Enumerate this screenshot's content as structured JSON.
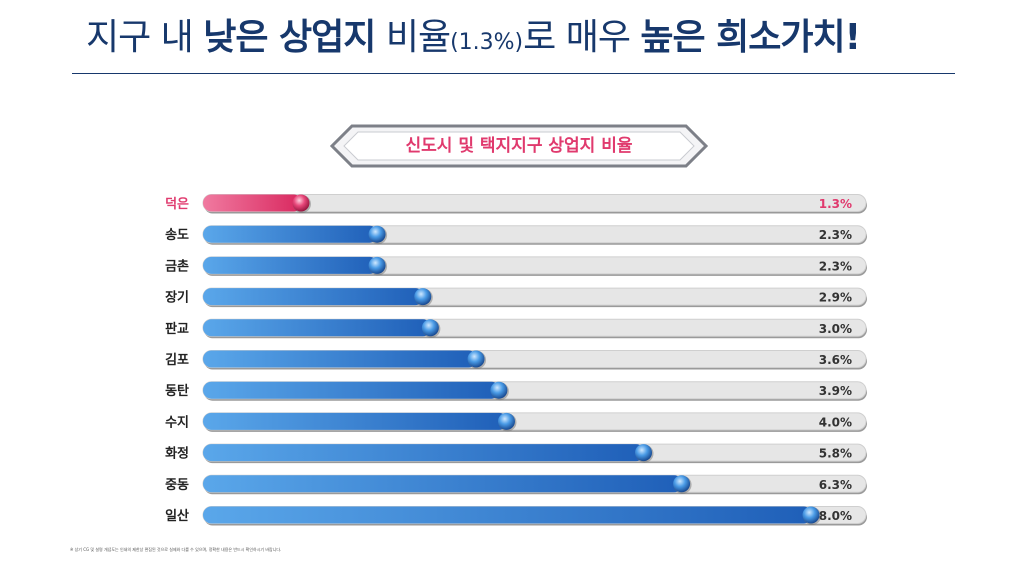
{
  "header": {
    "title_parts": {
      "p1": "지구 내 ",
      "p2": "낮은 상업지",
      "p3": " 비율",
      "p4": "(1.3%)",
      "p5": "로 매우 ",
      "p6": "높은 희소가치!"
    }
  },
  "colors": {
    "title": "#17386c",
    "highlight": "#e03a6e",
    "bar_blue": "#2f7dd6",
    "track": "#e4e4e4"
  },
  "chart_data": {
    "type": "bar",
    "title": "신도시 및 택지지구 상업지 비율",
    "categories": [
      "덕은",
      "송도",
      "금촌",
      "장기",
      "판교",
      "김포",
      "동탄",
      "수지",
      "화정",
      "중동",
      "일산"
    ],
    "values": [
      1.3,
      2.3,
      2.3,
      2.9,
      3.0,
      3.6,
      3.9,
      4.0,
      5.8,
      6.3,
      8.0
    ],
    "value_labels": [
      "1.3%",
      "2.3%",
      "2.3%",
      "2.9%",
      "3.0%",
      "3.6%",
      "3.9%",
      "4.0%",
      "5.8%",
      "6.3%",
      "8.0%"
    ],
    "highlight": "덕은",
    "xlabel": "",
    "ylabel": "",
    "xlim": [
      0,
      8.0
    ]
  },
  "footnote": "※ 상기 CG 및 설명 개념도는 인쇄의 제한상 편집된 것으로 실제와 다를 수 있으며, 정확한 내용은 반드시 확인하시기 바랍니다."
}
